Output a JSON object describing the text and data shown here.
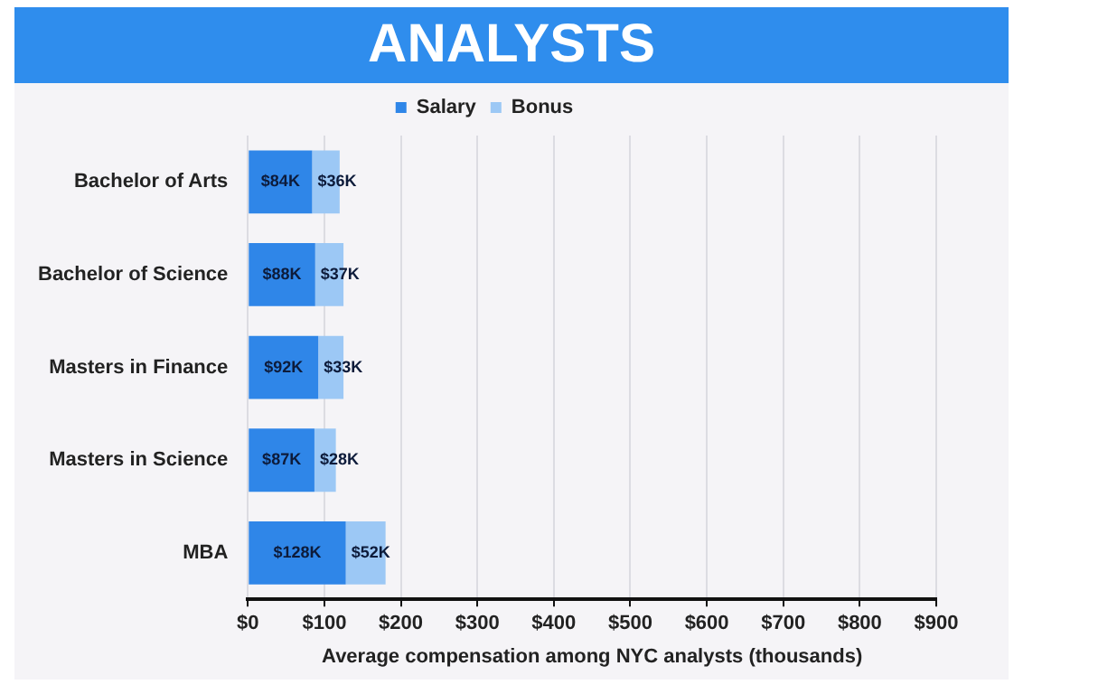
{
  "chart_data": {
    "type": "bar",
    "orientation": "horizontal",
    "stacked": true,
    "title": "ANALYSTS",
    "xlabel": "Average compensation among NYC analysts (thousands)",
    "categories": [
      "Bachelor of Arts",
      "Bachelor of Science",
      "Masters in Finance",
      "Masters in Science",
      "MBA"
    ],
    "series": [
      {
        "name": "Salary",
        "color": "#2f86e8",
        "values": [
          84,
          88,
          92,
          87,
          128
        ],
        "value_labels": [
          "$84K",
          "$88K",
          "$92K",
          "$87K",
          "$128K"
        ]
      },
      {
        "name": "Bonus",
        "color": "#9cc8f5",
        "values": [
          36,
          37,
          33,
          28,
          52
        ],
        "value_labels": [
          "$36K",
          "$37K",
          "$33K",
          "$28K",
          "$52K"
        ]
      }
    ],
    "xlim": [
      0,
      900
    ],
    "xticks": [
      {
        "value": 0,
        "label": "$0"
      },
      {
        "value": 100,
        "label": "$100"
      },
      {
        "value": 200,
        "label": "$200"
      },
      {
        "value": 300,
        "label": "$300"
      },
      {
        "value": 400,
        "label": "$400"
      },
      {
        "value": 500,
        "label": "$500"
      },
      {
        "value": 600,
        "label": "$600"
      },
      {
        "value": 700,
        "label": "$700"
      },
      {
        "value": 800,
        "label": "$800"
      },
      {
        "value": 900,
        "label": "$900"
      }
    ],
    "grid": "x",
    "legend": "top"
  }
}
